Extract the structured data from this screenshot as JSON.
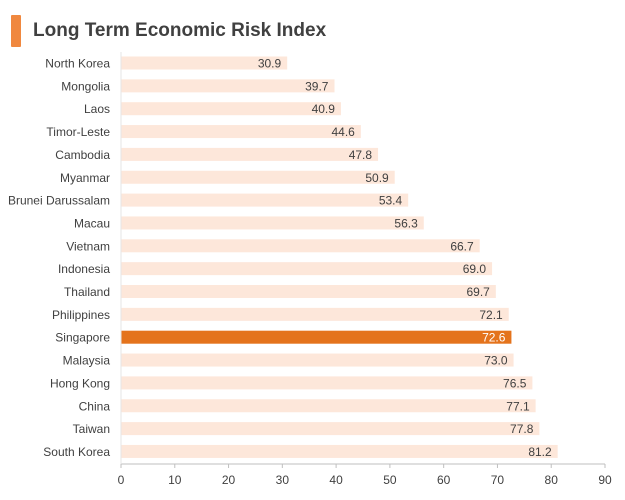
{
  "chart_data": {
    "type": "bar",
    "orientation": "horizontal",
    "title": "Long Term Economic Risk Index",
    "categories": [
      "North Korea",
      "Mongolia",
      "Laos",
      "Timor-Leste",
      "Cambodia",
      "Myanmar",
      "Brunei Darussalam",
      "Macau",
      "Vietnam",
      "Indonesia",
      "Thailand",
      "Philippines",
      "Singapore",
      "Malaysia",
      "Hong Kong",
      "China",
      "Taiwan",
      "South Korea"
    ],
    "values": [
      30.9,
      39.7,
      40.9,
      44.6,
      47.8,
      50.9,
      53.4,
      56.3,
      66.7,
      69.0,
      69.7,
      72.1,
      72.6,
      73.0,
      76.5,
      77.1,
      77.8,
      81.2
    ],
    "value_labels": [
      "30.9",
      "39.7",
      "40.9",
      "44.6",
      "47.8",
      "50.9",
      "53.4",
      "56.3",
      "66.7",
      "69.0",
      "69.7",
      "72.1",
      "72.6",
      "73.0",
      "76.5",
      "77.1",
      "77.8",
      "81.2"
    ],
    "highlight_category": "Singapore",
    "xlim": [
      0,
      90
    ],
    "xticks": [
      "0",
      "10",
      "20",
      "30",
      "40",
      "50",
      "60",
      "70",
      "80",
      "90"
    ],
    "xlabel": "",
    "ylabel": "",
    "grid": false,
    "colors": {
      "bar": "#fde7da",
      "highlight": "#e4731c",
      "title_accent": "#f0883f",
      "text": "#404040",
      "highlight_label": "#ffffff",
      "axis": "#bfbfbf"
    }
  }
}
